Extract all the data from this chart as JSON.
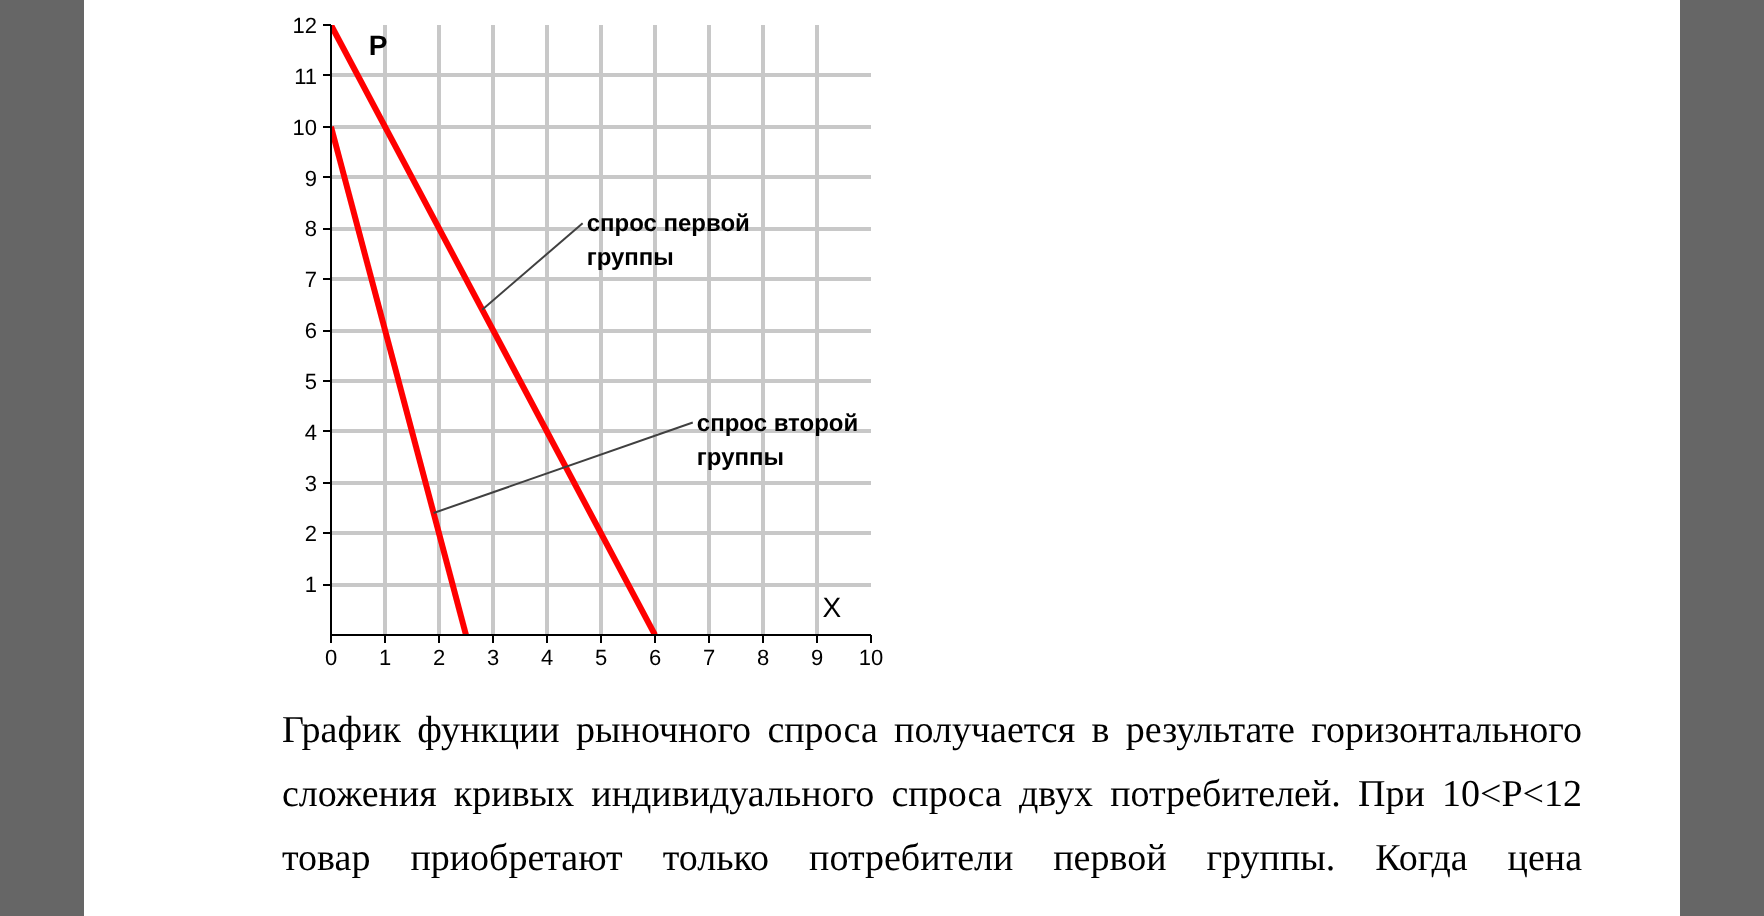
{
  "chart_data": {
    "type": "line",
    "xlabel": "X",
    "ylabel": "P",
    "xlim": [
      0,
      10
    ],
    "ylim": [
      0,
      12
    ],
    "xticks": [
      0,
      1,
      2,
      3,
      4,
      5,
      6,
      7,
      8,
      9,
      10
    ],
    "yticks": [
      1,
      2,
      3,
      4,
      5,
      6,
      7,
      8,
      9,
      10,
      11,
      12
    ],
    "grid": true,
    "series": [
      {
        "color": "#ff0000",
        "x": [
          0,
          6
        ],
        "values": [
          12,
          0
        ]
      },
      {
        "color": "#ff0000",
        "x": [
          0,
          2.5
        ],
        "values": [
          10,
          0
        ]
      }
    ],
    "annotations": [
      {
        "text": "спрос первой группы",
        "x": 2.8,
        "y": 6.4
      },
      {
        "text": "спрос второй группы",
        "x": 1.9,
        "y": 2.4
      },
      "График функции рыночного спроса получается в результате горизонтального сложения кривых индивидуального спроса двух потребителей. При 10<P<12 товар приобретают только потребители первой группы. Когда цена"
    ]
  }
}
